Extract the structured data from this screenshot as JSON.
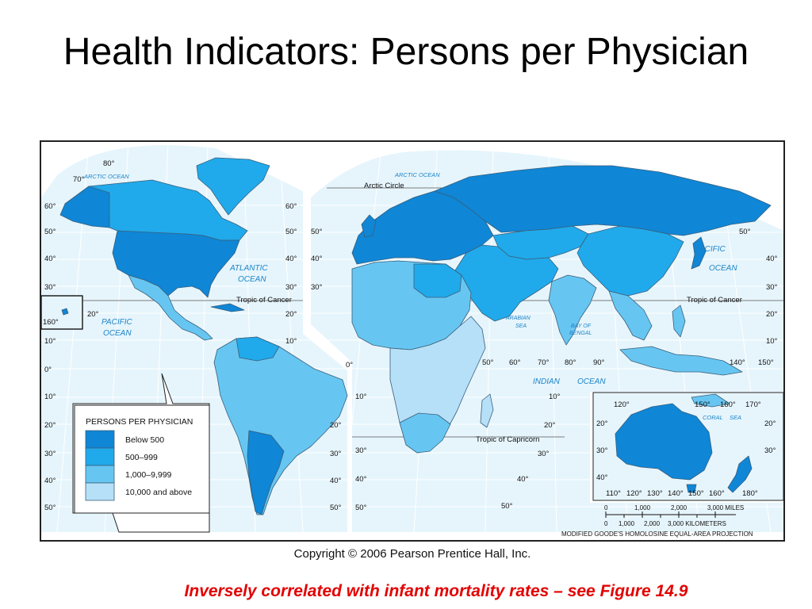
{
  "title": "Health Indicators: Persons per Physician",
  "map": {
    "ocean_labels": [
      {
        "text": "ARCTIC OCEAN",
        "region": "north-america"
      },
      {
        "text": "ARCTIC OCEAN",
        "region": "eurasia"
      },
      {
        "text": "ATLANTIC",
        "region": "north-atlantic"
      },
      {
        "text": "OCEAN",
        "region": "north-atlantic"
      },
      {
        "text": "PACIFIC",
        "region": "east-pacific"
      },
      {
        "text": "OCEAN",
        "region": "east-pacific"
      },
      {
        "text": "PACIFIC",
        "region": "west-pacific"
      },
      {
        "text": "OCEAN",
        "region": "west-pacific"
      },
      {
        "text": "ARABIAN",
        "region": "arabian-sea"
      },
      {
        "text": "SEA",
        "region": "arabian-sea"
      },
      {
        "text": "BAY OF",
        "region": "bay-of-bengal"
      },
      {
        "text": "BENGAL",
        "region": "bay-of-bengal"
      },
      {
        "text": "INDIAN",
        "region": "indian-ocean"
      },
      {
        "text": "OCEAN",
        "region": "indian-ocean"
      },
      {
        "text": "CORAL",
        "region": "coral-sea"
      },
      {
        "text": "SEA",
        "region": "coral-sea"
      }
    ],
    "line_labels": {
      "arctic_circle": "Arctic Circle",
      "tropic_cancer_west": "Tropic of Cancer",
      "tropic_cancer_east": "Tropic of Cancer",
      "tropic_capricorn": "Tropic of Capricorn"
    },
    "latitude_labels": [
      "60°",
      "50°",
      "40°",
      "30°",
      "20°",
      "10°",
      "0°",
      "10°",
      "20°",
      "30°",
      "40°",
      "50°"
    ],
    "longitude_labels": [
      "80°",
      "70°",
      "160°",
      "50°",
      "60°",
      "70°",
      "80°",
      "90°",
      "140°",
      "150°",
      "110°",
      "120°",
      "130°",
      "140°",
      "150°",
      "160°",
      "180°",
      "120°",
      "150°",
      "160°",
      "170°"
    ],
    "legend": {
      "title": "PERSONS PER PHYSICIAN",
      "items": [
        {
          "label": "Below 500",
          "color": "#0f86d6"
        },
        {
          "label": "500–999",
          "color": "#20aaeb"
        },
        {
          "label": "1,000–9,999",
          "color": "#67c6f1"
        },
        {
          "label": "10,000 and above",
          "color": "#b6e0f8"
        }
      ]
    },
    "scale": {
      "miles_ticks": [
        "0",
        "1,000",
        "2,000",
        "3,000 MILES"
      ],
      "km_ticks": [
        "0",
        "1,000",
        "2,000",
        "3,000 KILOMETERS"
      ],
      "projection": "MODIFIED GOODE'S HOMOLOSINE EQUAL-AREA PROJECTION"
    },
    "colors": {
      "ocean": "#e6f5fc",
      "graticule": "#ffffff",
      "border": "#3a5f7a"
    }
  },
  "copyright": "Copyright © 2006 Pearson Prentice Hall, Inc.",
  "footnote": "Inversely correlated with infant mortality rates – see Figure 14.9"
}
